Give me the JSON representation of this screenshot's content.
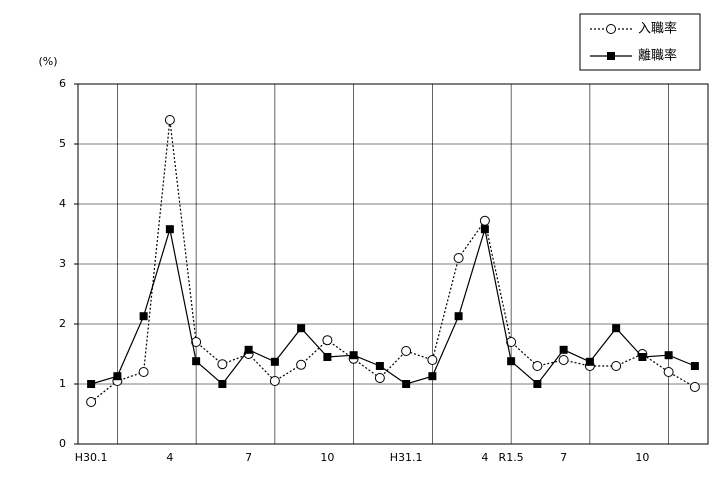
{
  "chart_data": {
    "type": "line",
    "y_label": "(%)",
    "categories": [
      "H30.1",
      null,
      null,
      "4",
      null,
      null,
      "7",
      null,
      null,
      "10",
      null,
      null,
      "H31.1",
      null,
      null,
      "4",
      "R1.5",
      null,
      "7",
      null,
      null,
      "10",
      null,
      null
    ],
    "series": [
      {
        "name": "入職率",
        "color": "#000000",
        "marker": "circle",
        "dash": "dotted",
        "values": [
          0.7,
          1.05,
          1.2,
          5.4,
          1.7,
          1.33,
          1.5,
          1.05,
          1.32,
          1.73,
          1.42,
          1.1,
          1.55,
          1.4,
          3.1,
          3.72,
          1.7,
          1.3,
          1.4,
          1.3,
          1.3,
          1.5,
          1.2,
          0.95
        ]
      },
      {
        "name": "離職率",
        "color": "#000000",
        "marker": "square",
        "dash": "solid",
        "values": [
          1.0,
          1.13,
          2.13,
          3.58,
          1.38,
          1.0,
          1.57,
          1.37,
          1.93,
          1.45,
          1.48,
          1.3,
          1.0,
          1.13,
          2.13,
          3.58,
          1.38,
          1.0,
          1.57,
          1.37,
          1.93,
          1.45,
          1.48,
          1.3
        ]
      }
    ],
    "ylim": [
      0,
      6
    ],
    "yticks": [
      0,
      1,
      2,
      3,
      4,
      5,
      6
    ],
    "grid": true,
    "legend": "top-right"
  }
}
